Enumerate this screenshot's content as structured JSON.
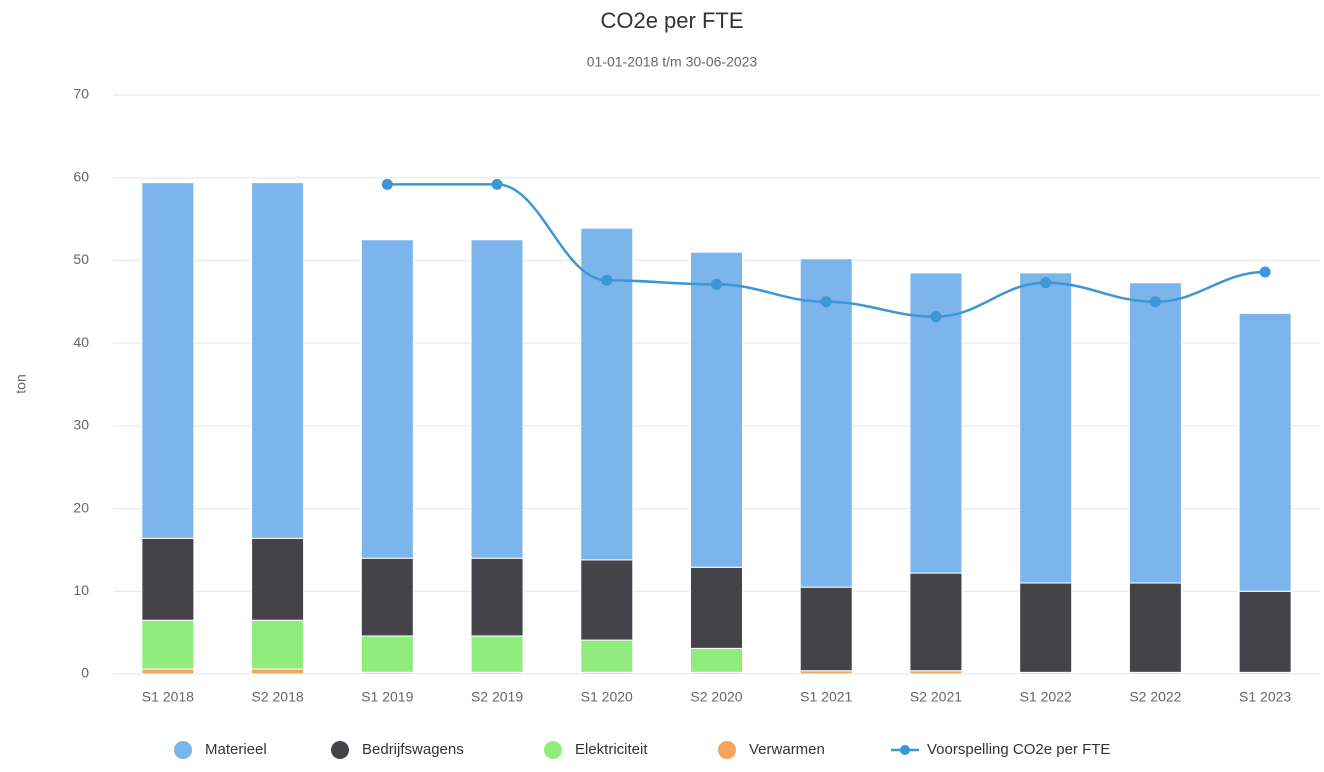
{
  "chart_data": {
    "type": "bar",
    "stacked": true,
    "title": "CO2e per FTE",
    "subtitle": "01-01-2018 t/m 30-06-2023",
    "y_label": "ton",
    "categories": [
      "S1 2018",
      "S2 2018",
      "S1 2019",
      "S2 2019",
      "S1 2020",
      "S2 2020",
      "S1 2021",
      "S2 2021",
      "S1 2022",
      "S2 2022",
      "S1 2023"
    ],
    "series": [
      {
        "name": "Materieel",
        "color": "#7cb5ec",
        "values": [
          43,
          43,
          38.5,
          38.5,
          40.1,
          38.1,
          39.7,
          36.3,
          37.5,
          36.3,
          33.6
        ]
      },
      {
        "name": "Bedrijfswagens",
        "color": "#434348",
        "values": [
          9.9,
          9.9,
          9.4,
          9.4,
          9.7,
          9.8,
          10.1,
          11.8,
          10.8,
          10.8,
          9.8
        ]
      },
      {
        "name": "Elektriciteit",
        "color": "#90ed7d",
        "values": [
          5.9,
          5.9,
          4.4,
          4.4,
          3.9,
          2.9,
          0,
          0,
          0,
          0,
          0
        ]
      },
      {
        "name": "Verwarmen",
        "color": "#f7a35c",
        "values": [
          0.6,
          0.6,
          0.2,
          0.2,
          0.2,
          0.2,
          0.4,
          0.4,
          0.2,
          0.2,
          0.2
        ]
      },
      {
        "name": "Voorspelling CO2e per FTE",
        "type": "line",
        "color": "#3d96d6",
        "values": [
          null,
          null,
          59.2,
          59.2,
          47.6,
          47.1,
          45,
          43.2,
          47.3,
          45,
          48.6
        ]
      }
    ],
    "ylim": [
      0,
      70
    ],
    "yticks": [
      0,
      10,
      20,
      30,
      40,
      50,
      60,
      70
    ],
    "grid": true,
    "legend": "bottom"
  }
}
